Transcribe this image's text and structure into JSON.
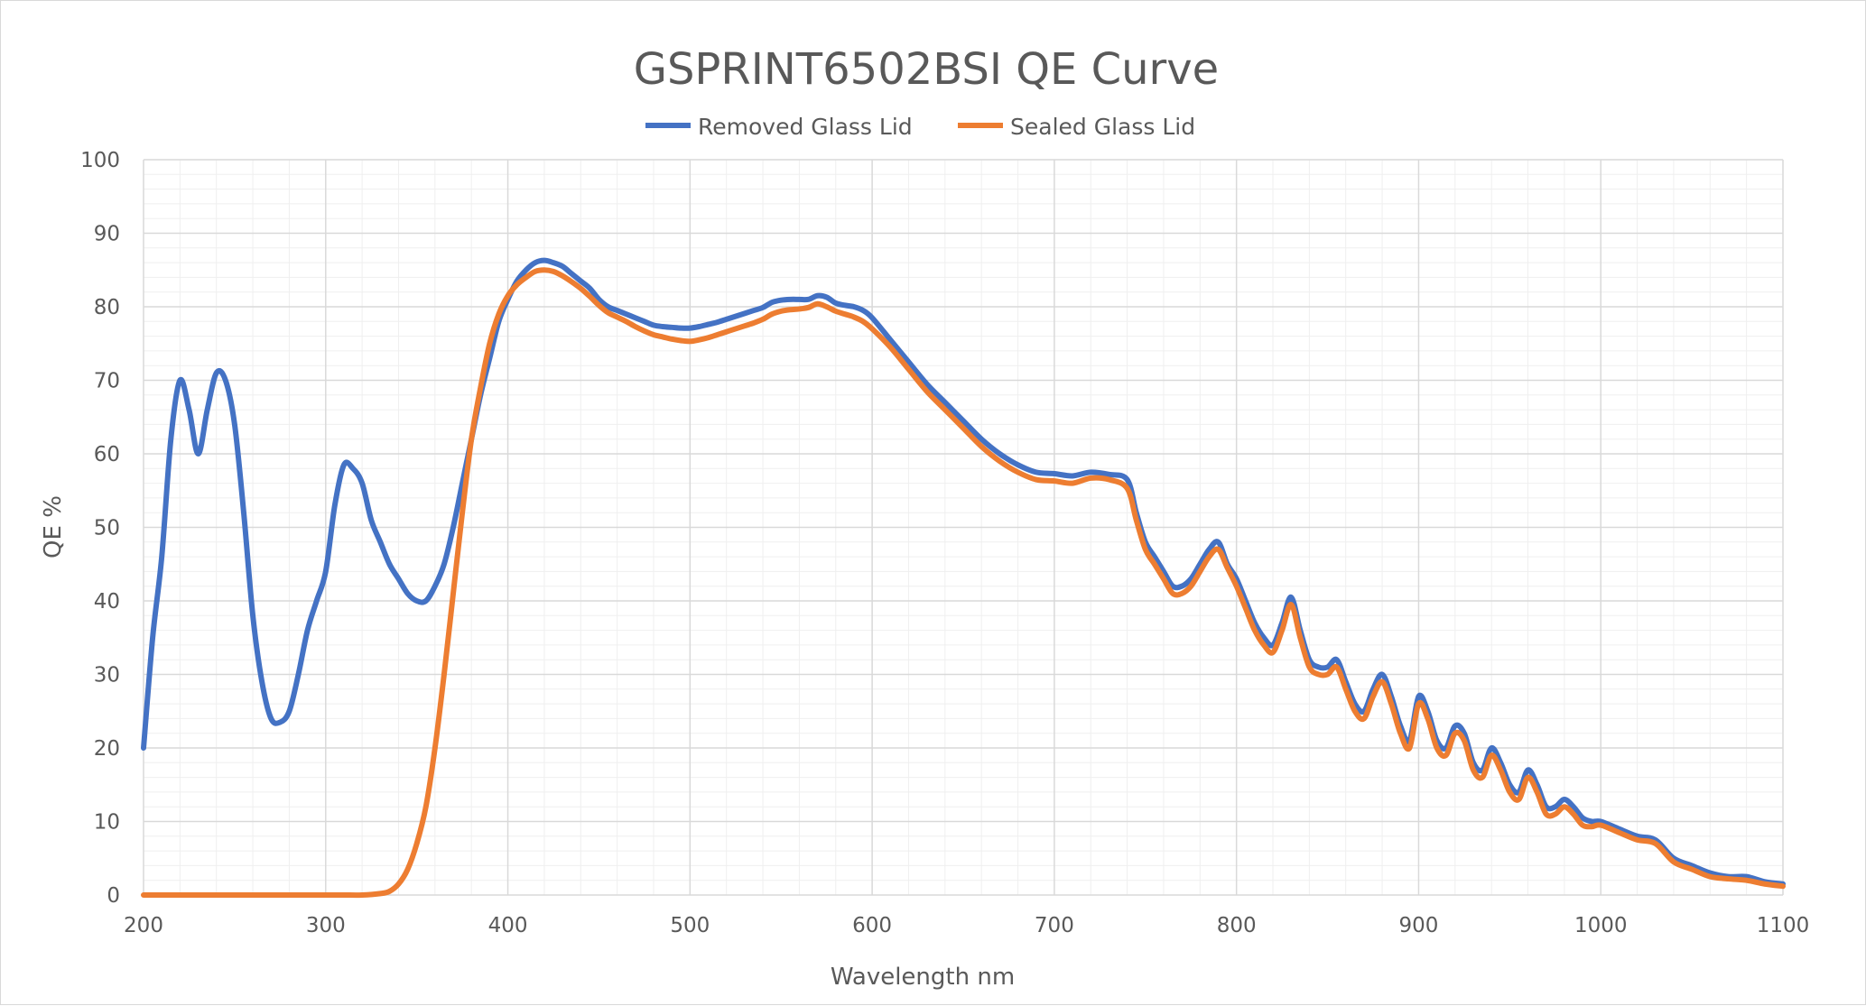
{
  "chart_data": {
    "type": "line",
    "title": "GSPRINT6502BSI QE  Curve",
    "xlabel": "Wavelength nm",
    "ylabel": "QE %",
    "xlim": [
      200,
      1100
    ],
    "ylim": [
      0,
      100
    ],
    "x_ticks": [
      "200",
      "300",
      "400",
      "500",
      "600",
      "700",
      "800",
      "900",
      "1000",
      "1100"
    ],
    "y_ticks": [
      "0",
      "10",
      "20",
      "30",
      "40",
      "50",
      "60",
      "70",
      "80",
      "90",
      "100"
    ],
    "grid": "major and minor on both axes",
    "legend_position": "top-center",
    "series": [
      {
        "name": "Removed Glass Lid",
        "color": "#4472c4",
        "points": [
          [
            200,
            20
          ],
          [
            205,
            35
          ],
          [
            210,
            46
          ],
          [
            215,
            62
          ],
          [
            220,
            70
          ],
          [
            225,
            66
          ],
          [
            230,
            60
          ],
          [
            235,
            66
          ],
          [
            240,
            71
          ],
          [
            245,
            70
          ],
          [
            250,
            64
          ],
          [
            255,
            52
          ],
          [
            260,
            38
          ],
          [
            265,
            29
          ],
          [
            270,
            24
          ],
          [
            275,
            23.5
          ],
          [
            280,
            25
          ],
          [
            285,
            30
          ],
          [
            290,
            36
          ],
          [
            295,
            40
          ],
          [
            300,
            44
          ],
          [
            305,
            53
          ],
          [
            310,
            58.5
          ],
          [
            315,
            58
          ],
          [
            320,
            56
          ],
          [
            325,
            51
          ],
          [
            330,
            48
          ],
          [
            335,
            45
          ],
          [
            340,
            43
          ],
          [
            345,
            41
          ],
          [
            350,
            40
          ],
          [
            355,
            40
          ],
          [
            360,
            42
          ],
          [
            365,
            45
          ],
          [
            370,
            50
          ],
          [
            375,
            56
          ],
          [
            380,
            62
          ],
          [
            385,
            68
          ],
          [
            390,
            73
          ],
          [
            395,
            78
          ],
          [
            400,
            81
          ],
          [
            405,
            83.5
          ],
          [
            410,
            85
          ],
          [
            415,
            86
          ],
          [
            420,
            86.3
          ],
          [
            425,
            86
          ],
          [
            430,
            85.5
          ],
          [
            435,
            84.5
          ],
          [
            440,
            83.5
          ],
          [
            445,
            82.5
          ],
          [
            450,
            81
          ],
          [
            455,
            80
          ],
          [
            460,
            79.5
          ],
          [
            465,
            79
          ],
          [
            470,
            78.5
          ],
          [
            475,
            78
          ],
          [
            480,
            77.5
          ],
          [
            485,
            77.3
          ],
          [
            490,
            77.2
          ],
          [
            495,
            77.1
          ],
          [
            500,
            77.1
          ],
          [
            505,
            77.3
          ],
          [
            510,
            77.6
          ],
          [
            515,
            77.9
          ],
          [
            520,
            78.3
          ],
          [
            525,
            78.7
          ],
          [
            530,
            79.1
          ],
          [
            535,
            79.5
          ],
          [
            540,
            79.9
          ],
          [
            545,
            80.6
          ],
          [
            550,
            80.9
          ],
          [
            555,
            81
          ],
          [
            560,
            81
          ],
          [
            565,
            81
          ],
          [
            570,
            81.5
          ],
          [
            575,
            81.3
          ],
          [
            580,
            80.5
          ],
          [
            585,
            80.2
          ],
          [
            590,
            80
          ],
          [
            595,
            79.5
          ],
          [
            600,
            78.5
          ],
          [
            610,
            75.5
          ],
          [
            620,
            72.5
          ],
          [
            630,
            69.5
          ],
          [
            640,
            67
          ],
          [
            650,
            64.5
          ],
          [
            660,
            62
          ],
          [
            670,
            60
          ],
          [
            680,
            58.5
          ],
          [
            690,
            57.5
          ],
          [
            700,
            57.3
          ],
          [
            710,
            57
          ],
          [
            720,
            57.5
          ],
          [
            730,
            57.2
          ],
          [
            740,
            56.5
          ],
          [
            745,
            52
          ],
          [
            750,
            48
          ],
          [
            755,
            46
          ],
          [
            760,
            44
          ],
          [
            765,
            42
          ],
          [
            770,
            42
          ],
          [
            775,
            43
          ],
          [
            780,
            45
          ],
          [
            785,
            47
          ],
          [
            790,
            48
          ],
          [
            795,
            45
          ],
          [
            800,
            43
          ],
          [
            805,
            40
          ],
          [
            810,
            37
          ],
          [
            815,
            35
          ],
          [
            820,
            34
          ],
          [
            825,
            37
          ],
          [
            830,
            40.5
          ],
          [
            835,
            36
          ],
          [
            840,
            32
          ],
          [
            845,
            31
          ],
          [
            850,
            31
          ],
          [
            855,
            32
          ],
          [
            860,
            29
          ],
          [
            865,
            26
          ],
          [
            870,
            25
          ],
          [
            875,
            28
          ],
          [
            880,
            30
          ],
          [
            885,
            27
          ],
          [
            890,
            23
          ],
          [
            895,
            21
          ],
          [
            900,
            27
          ],
          [
            905,
            25
          ],
          [
            910,
            21
          ],
          [
            915,
            20
          ],
          [
            920,
            23
          ],
          [
            925,
            22
          ],
          [
            930,
            18
          ],
          [
            935,
            17
          ],
          [
            940,
            20
          ],
          [
            945,
            18
          ],
          [
            950,
            15
          ],
          [
            955,
            14
          ],
          [
            960,
            17
          ],
          [
            965,
            15
          ],
          [
            970,
            12
          ],
          [
            975,
            12
          ],
          [
            980,
            13
          ],
          [
            985,
            12
          ],
          [
            990,
            10.5
          ],
          [
            995,
            10
          ],
          [
            1000,
            10
          ],
          [
            1010,
            9
          ],
          [
            1020,
            8
          ],
          [
            1030,
            7.5
          ],
          [
            1040,
            5
          ],
          [
            1050,
            4
          ],
          [
            1060,
            3
          ],
          [
            1070,
            2.5
          ],
          [
            1080,
            2.5
          ],
          [
            1090,
            1.8
          ],
          [
            1100,
            1.5
          ]
        ]
      },
      {
        "name": "Sealed Glass Lid",
        "color": "#ed7d31",
        "points": [
          [
            200,
            0
          ],
          [
            210,
            0
          ],
          [
            220,
            0
          ],
          [
            230,
            0
          ],
          [
            240,
            0
          ],
          [
            250,
            0
          ],
          [
            260,
            0
          ],
          [
            270,
            0
          ],
          [
            280,
            0
          ],
          [
            290,
            0
          ],
          [
            300,
            0
          ],
          [
            310,
            0
          ],
          [
            320,
            0
          ],
          [
            330,
            0.2
          ],
          [
            335,
            0.5
          ],
          [
            340,
            1.5
          ],
          [
            345,
            3.5
          ],
          [
            350,
            7
          ],
          [
            355,
            12
          ],
          [
            360,
            20
          ],
          [
            365,
            30
          ],
          [
            370,
            41
          ],
          [
            375,
            52
          ],
          [
            380,
            62
          ],
          [
            385,
            69
          ],
          [
            390,
            75
          ],
          [
            395,
            79
          ],
          [
            400,
            81.5
          ],
          [
            405,
            83
          ],
          [
            410,
            84
          ],
          [
            415,
            84.8
          ],
          [
            420,
            85
          ],
          [
            425,
            84.8
          ],
          [
            430,
            84.2
          ],
          [
            435,
            83.4
          ],
          [
            440,
            82.5
          ],
          [
            445,
            81.4
          ],
          [
            450,
            80.2
          ],
          [
            455,
            79.2
          ],
          [
            460,
            78.6
          ],
          [
            465,
            78
          ],
          [
            470,
            77.3
          ],
          [
            475,
            76.7
          ],
          [
            480,
            76.2
          ],
          [
            485,
            75.9
          ],
          [
            490,
            75.6
          ],
          [
            495,
            75.4
          ],
          [
            500,
            75.3
          ],
          [
            505,
            75.5
          ],
          [
            510,
            75.8
          ],
          [
            515,
            76.2
          ],
          [
            520,
            76.6
          ],
          [
            525,
            77
          ],
          [
            530,
            77.4
          ],
          [
            535,
            77.8
          ],
          [
            540,
            78.3
          ],
          [
            545,
            79
          ],
          [
            550,
            79.4
          ],
          [
            555,
            79.6
          ],
          [
            560,
            79.7
          ],
          [
            565,
            79.9
          ],
          [
            570,
            80.4
          ],
          [
            575,
            80
          ],
          [
            580,
            79.4
          ],
          [
            585,
            79
          ],
          [
            590,
            78.6
          ],
          [
            595,
            78
          ],
          [
            600,
            77
          ],
          [
            610,
            74.5
          ],
          [
            620,
            71.5
          ],
          [
            630,
            68.5
          ],
          [
            640,
            66
          ],
          [
            650,
            63.5
          ],
          [
            660,
            61
          ],
          [
            670,
            59
          ],
          [
            680,
            57.5
          ],
          [
            690,
            56.5
          ],
          [
            700,
            56.3
          ],
          [
            710,
            56
          ],
          [
            720,
            56.7
          ],
          [
            730,
            56.5
          ],
          [
            740,
            55.3
          ],
          [
            745,
            51
          ],
          [
            750,
            47
          ],
          [
            755,
            45
          ],
          [
            760,
            43
          ],
          [
            765,
            41
          ],
          [
            770,
            41
          ],
          [
            775,
            42
          ],
          [
            780,
            44
          ],
          [
            785,
            46
          ],
          [
            790,
            47
          ],
          [
            795,
            44.5
          ],
          [
            800,
            42
          ],
          [
            805,
            39
          ],
          [
            810,
            36
          ],
          [
            815,
            34
          ],
          [
            820,
            33
          ],
          [
            825,
            36
          ],
          [
            830,
            39.5
          ],
          [
            835,
            35
          ],
          [
            840,
            31
          ],
          [
            845,
            30
          ],
          [
            850,
            30
          ],
          [
            855,
            31
          ],
          [
            860,
            28
          ],
          [
            865,
            25
          ],
          [
            870,
            24
          ],
          [
            875,
            27
          ],
          [
            880,
            29
          ],
          [
            885,
            26
          ],
          [
            890,
            22
          ],
          [
            895,
            20
          ],
          [
            900,
            26
          ],
          [
            905,
            24
          ],
          [
            910,
            20
          ],
          [
            915,
            19
          ],
          [
            920,
            22
          ],
          [
            925,
            21
          ],
          [
            930,
            17
          ],
          [
            935,
            16
          ],
          [
            940,
            19
          ],
          [
            945,
            17
          ],
          [
            950,
            14
          ],
          [
            955,
            13
          ],
          [
            960,
            16
          ],
          [
            965,
            14
          ],
          [
            970,
            11
          ],
          [
            975,
            11
          ],
          [
            980,
            12
          ],
          [
            985,
            11
          ],
          [
            990,
            9.5
          ],
          [
            995,
            9.3
          ],
          [
            1000,
            9.5
          ],
          [
            1010,
            8.5
          ],
          [
            1020,
            7.5
          ],
          [
            1030,
            7
          ],
          [
            1040,
            4.5
          ],
          [
            1050,
            3.5
          ],
          [
            1060,
            2.5
          ],
          [
            1070,
            2.2
          ],
          [
            1080,
            2
          ],
          [
            1090,
            1.5
          ],
          [
            1100,
            1.2
          ]
        ]
      }
    ]
  }
}
